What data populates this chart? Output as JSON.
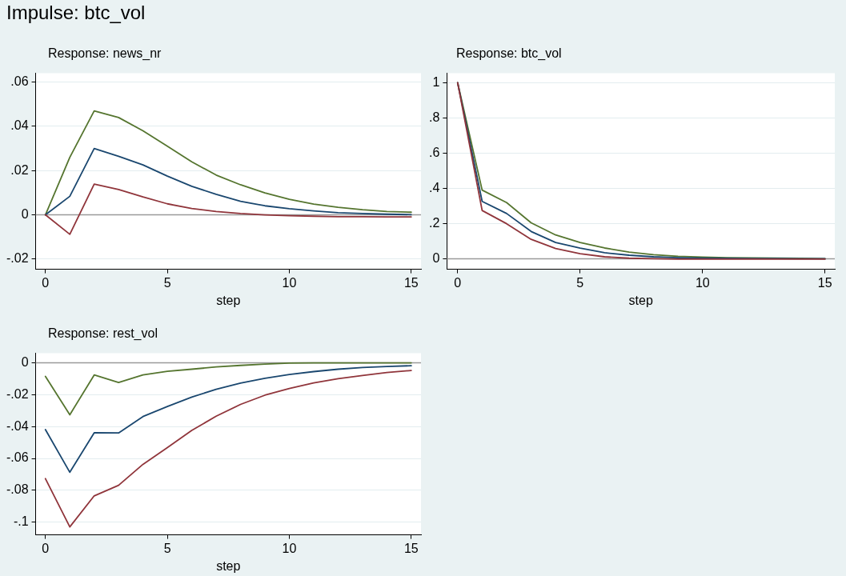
{
  "chart_data": [
    {
      "type": "line",
      "title": "Impulse: btc_vol",
      "subtitle": "Response: news_nr",
      "xlabel": "step",
      "x": [
        0,
        1,
        2,
        3,
        4,
        5,
        6,
        7,
        8,
        9,
        10,
        11,
        12,
        13,
        14,
        15
      ],
      "series": [
        {
          "color": "#90353b",
          "values": [
            0,
            -0.0088,
            0.0139,
            0.0115,
            0.0081,
            0.005,
            0.0029,
            0.0015,
            0.0006,
            0,
            -0.0004,
            -0.0006,
            -0.0008,
            -0.0008,
            -0.0009,
            -0.0009
          ]
        },
        {
          "color": "#1a476f",
          "values": [
            0,
            0.0084,
            0.03,
            0.0265,
            0.0226,
            0.0175,
            0.0129,
            0.0093,
            0.0061,
            0.0041,
            0.0028,
            0.0018,
            0.001,
            0.0006,
            0.0003,
            0.0001
          ]
        },
        {
          "color": "#55752f",
          "values": [
            0,
            0.026,
            0.047,
            0.044,
            0.038,
            0.031,
            0.024,
            0.018,
            0.0136,
            0.0099,
            0.007,
            0.0049,
            0.0034,
            0.0023,
            0.0015,
            0.0012
          ]
        }
      ],
      "xlim": [
        -0.4,
        15.4
      ],
      "xticks": [
        0,
        5,
        10,
        15
      ],
      "ylim": [
        -0.0246,
        0.064
      ],
      "yticks": [
        {
          "value": -0.02,
          "label": "-.02"
        },
        {
          "value": 0,
          "label": "0"
        },
        {
          "value": 0.02,
          "label": ".02"
        },
        {
          "value": 0.04,
          "label": ".04"
        },
        {
          "value": 0.06,
          "label": ".06"
        }
      ],
      "grid": "y",
      "ref_lines": [
        {
          "axis": "y",
          "value": 0,
          "color": "#9a9a9a"
        }
      ]
    },
    {
      "type": "line",
      "subtitle": "Response: btc_vol",
      "xlabel": "step",
      "x": [
        0,
        1,
        2,
        3,
        4,
        5,
        6,
        7,
        8,
        9,
        10,
        11,
        12,
        13,
        14,
        15
      ],
      "series": [
        {
          "color": "#90353b",
          "values": [
            1,
            0.274,
            0.199,
            0.11,
            0.058,
            0.029,
            0.011,
            0.003,
            0,
            -0.002,
            -0.002,
            -0.002,
            -0.002,
            -0.002,
            -0.002,
            -0.002
          ]
        },
        {
          "color": "#1a476f",
          "values": [
            1,
            0.326,
            0.257,
            0.155,
            0.092,
            0.06,
            0.034,
            0.02,
            0.011,
            0.006,
            0.003,
            0.002,
            0.001,
            0.001,
            0,
            0
          ]
        },
        {
          "color": "#55752f",
          "values": [
            1,
            0.39,
            0.319,
            0.204,
            0.135,
            0.092,
            0.061,
            0.038,
            0.023,
            0.014,
            0.009,
            0.006,
            0.005,
            0.003,
            0.002,
            0
          ]
        }
      ],
      "xlim": [
        -0.44,
        15.4
      ],
      "xticks": [
        0,
        5,
        10,
        15
      ],
      "ylim": [
        -0.06,
        1.054
      ],
      "yticks": [
        {
          "value": 0,
          "label": "0"
        },
        {
          "value": 0.2,
          "label": ".2"
        },
        {
          "value": 0.4,
          "label": ".4"
        },
        {
          "value": 0.6,
          "label": ".6"
        },
        {
          "value": 0.8,
          "label": ".8"
        },
        {
          "value": 1,
          "label": "1"
        }
      ],
      "grid": "y",
      "ref_lines": [
        {
          "axis": "y",
          "value": 0,
          "color": "#9a9a9a"
        }
      ]
    },
    {
      "type": "line",
      "subtitle": "Response: rest_vol",
      "xlabel": "step",
      "x": [
        0,
        1,
        2,
        3,
        4,
        5,
        6,
        7,
        8,
        9,
        10,
        11,
        12,
        13,
        14,
        15
      ],
      "series": [
        {
          "color": "#90353b",
          "values": [
            -0.0727,
            -0.103,
            -0.0835,
            -0.0769,
            -0.0637,
            -0.0532,
            -0.0424,
            -0.0335,
            -0.0261,
            -0.0203,
            -0.0161,
            -0.0126,
            -0.01,
            -0.0079,
            -0.0061,
            -0.0048
          ]
        },
        {
          "color": "#1a476f",
          "values": [
            -0.0419,
            -0.0687,
            -0.0439,
            -0.044,
            -0.0337,
            -0.0274,
            -0.0215,
            -0.0166,
            -0.0127,
            -0.0097,
            -0.0073,
            -0.0055,
            -0.004,
            -0.0029,
            -0.0023,
            -0.0018
          ]
        },
        {
          "color": "#55752f",
          "values": [
            -0.0085,
            -0.0326,
            -0.0076,
            -0.0123,
            -0.0076,
            -0.0053,
            -0.004,
            -0.0026,
            -0.0016,
            -0.0008,
            -0.0002,
            0,
            0,
            0,
            0,
            0
          ]
        }
      ],
      "xlim": [
        -0.4,
        15.4
      ],
      "xticks": [
        0,
        5,
        10,
        15
      ],
      "ylim": [
        -0.108,
        0.006
      ],
      "yticks": [
        {
          "value": -0.1,
          "label": "-.1"
        },
        {
          "value": -0.08,
          "label": "-.08"
        },
        {
          "value": -0.06,
          "label": "-.06"
        },
        {
          "value": -0.04,
          "label": "-.04"
        },
        {
          "value": -0.02,
          "label": "-.02"
        },
        {
          "value": 0,
          "label": "0"
        }
      ],
      "grid": "y",
      "ref_lines": [
        {
          "axis": "y",
          "value": 0,
          "color": "#9a9a9a"
        }
      ]
    }
  ]
}
